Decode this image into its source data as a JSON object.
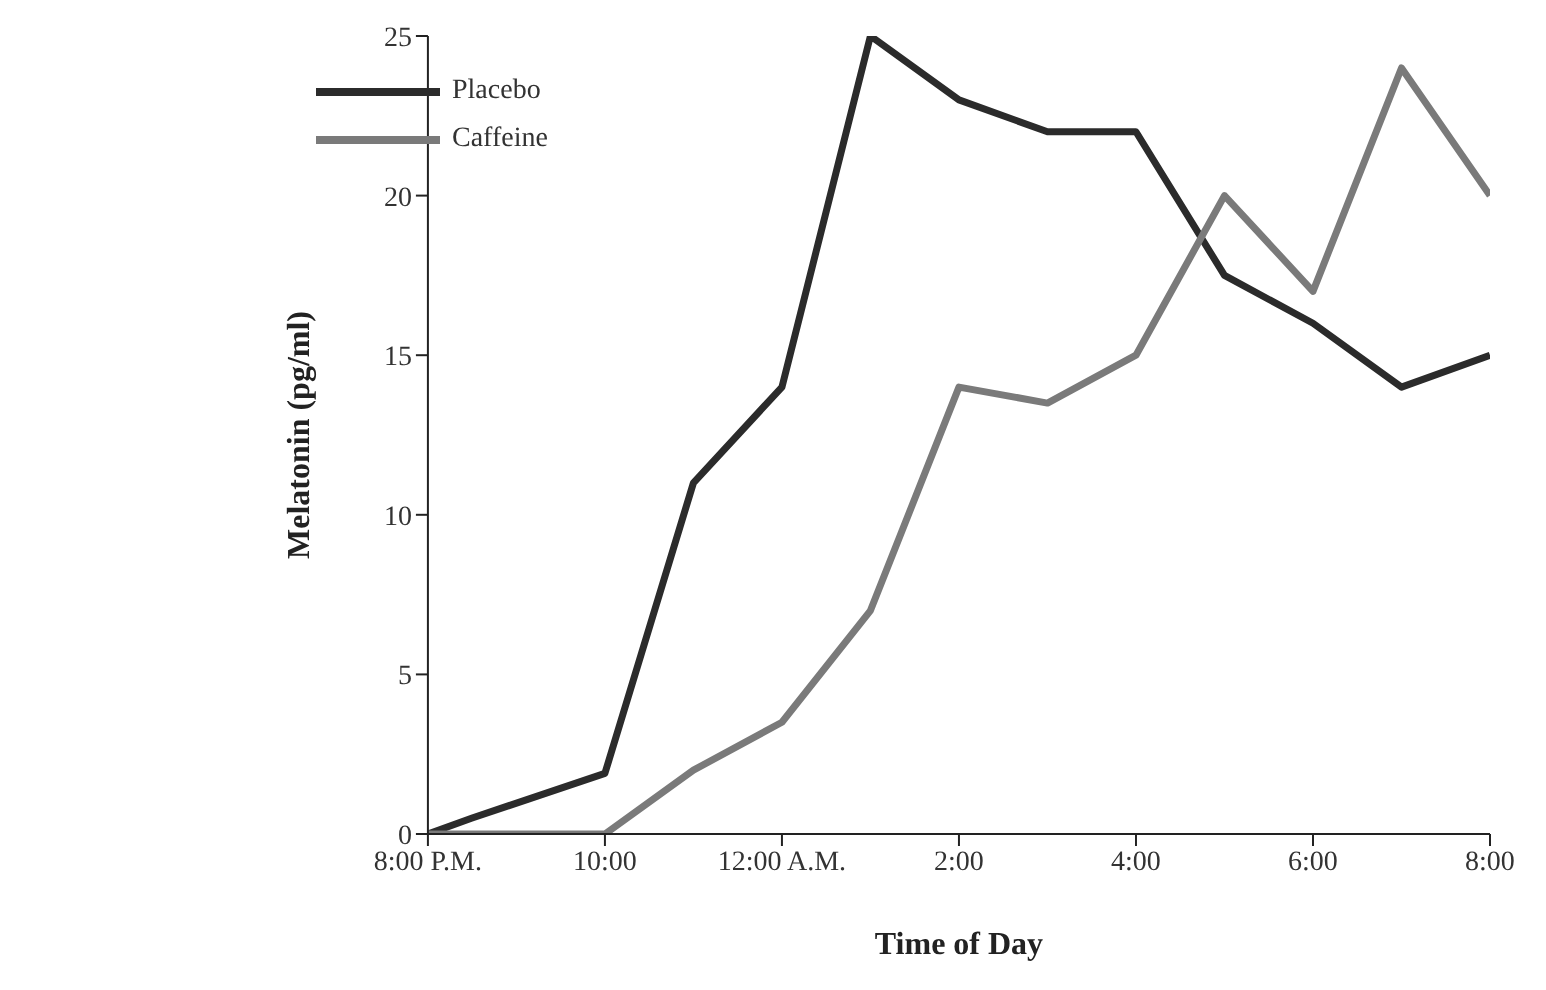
{
  "chart_data": {
    "type": "line",
    "xlabel": "Time of Day",
    "ylabel": "Melatonin (pg/ml)",
    "xlim": [
      "2000-01-01T20:00",
      "2000-01-02T08:00"
    ],
    "xticks": [
      {
        "value": "2000-01-01T20:00",
        "label": "8:00 P.M."
      },
      {
        "value": "2000-01-01T22:00",
        "label": "10:00"
      },
      {
        "value": "2000-01-02T00:00",
        "label": "12:00 A.M."
      },
      {
        "value": "2000-01-02T02:00",
        "label": "2:00"
      },
      {
        "value": "2000-01-02T04:00",
        "label": "4:00"
      },
      {
        "value": "2000-01-02T06:00",
        "label": "6:00"
      },
      {
        "value": "2000-01-02T08:00",
        "label": "8:00"
      }
    ],
    "ylim": [
      0,
      25
    ],
    "yticks": [
      0,
      5,
      10,
      15,
      20,
      25
    ],
    "legend": "top left",
    "marker": "none",
    "line_style": "solid",
    "series": [
      {
        "name": "Placebo",
        "color": "#2b2b2b",
        "x": [
          "2000-01-01T20:00",
          "2000-01-01T20:30",
          "2000-01-01T22:00",
          "2000-01-01T23:00",
          "2000-01-02T00:00",
          "2000-01-02T01:00",
          "2000-01-02T02:00",
          "2000-01-02T03:00",
          "2000-01-02T04:00",
          "2000-01-02T05:00",
          "2000-01-02T06:00",
          "2000-01-02T07:00",
          "2000-01-02T08:00"
        ],
        "values": [
          0,
          0.5,
          1.9,
          11,
          14,
          25,
          23,
          22,
          22,
          17.5,
          16,
          14,
          15
        ]
      },
      {
        "name": "Caffeine",
        "color": "#7a7a7a",
        "x": [
          "2000-01-01T20:00",
          "2000-01-01T22:00",
          "2000-01-01T23:00",
          "2000-01-02T00:00",
          "2000-01-02T01:00",
          "2000-01-02T02:00",
          "2000-01-02T03:00",
          "2000-01-02T04:00",
          "2000-01-02T05:00",
          "2000-01-02T06:00",
          "2000-01-02T07:00",
          "2000-01-02T08:00"
        ],
        "values": [
          0,
          0,
          2,
          3.5,
          7,
          14,
          13.5,
          15,
          20,
          17,
          24,
          20
        ]
      }
    ]
  }
}
